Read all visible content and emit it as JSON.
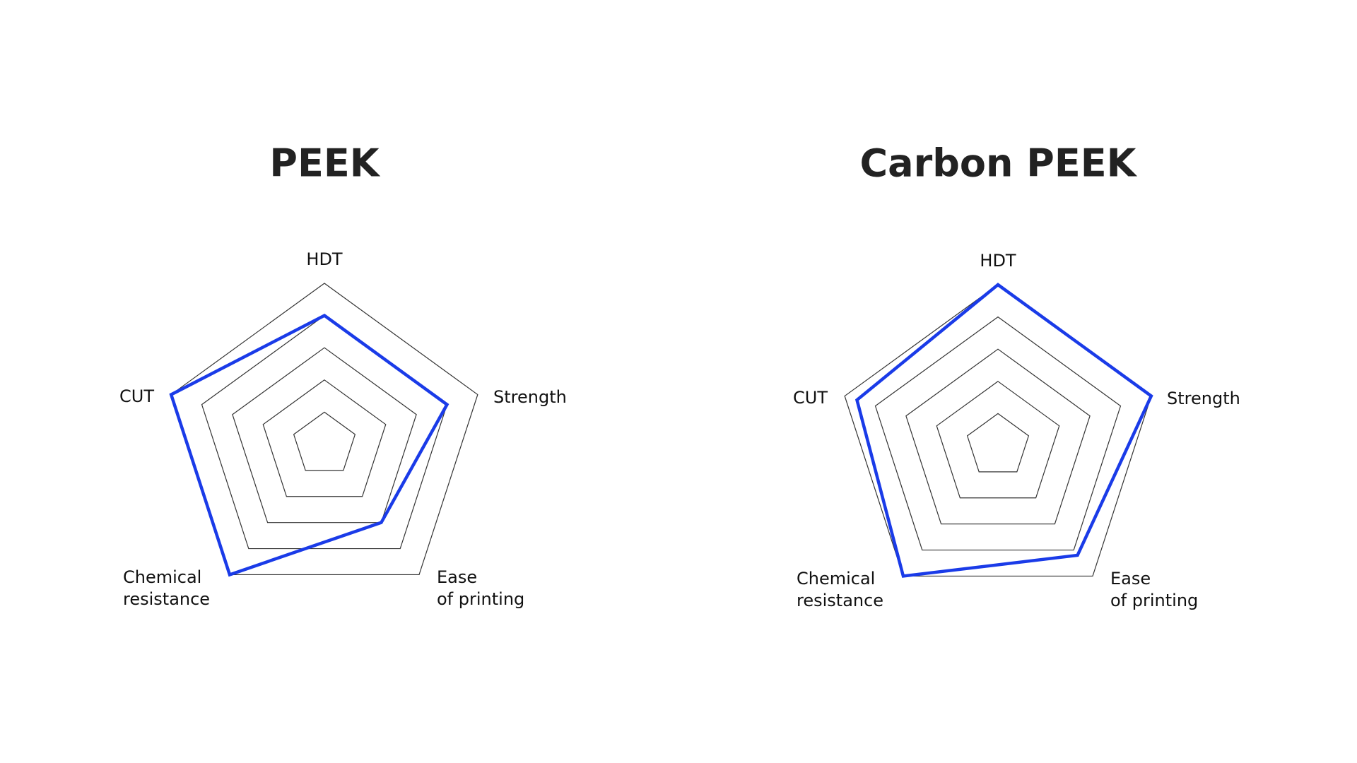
{
  "chart_data": [
    {
      "type": "radar",
      "title": "PEEK",
      "categories": [
        [
          "HDT"
        ],
        [
          "Strength"
        ],
        [
          "Ease",
          "of printing"
        ],
        [
          "Chemical",
          "resistance"
        ],
        [
          "CUT"
        ]
      ],
      "values": [
        4,
        4,
        3,
        5,
        5
      ],
      "color": "#1a3be8",
      "rlim": [
        0,
        5
      ],
      "rticks": [
        1,
        2,
        3,
        4,
        5
      ]
    },
    {
      "type": "radar",
      "title": "Carbon PEEK",
      "categories": [
        [
          "HDT"
        ],
        [
          "Strength"
        ],
        [
          "Ease",
          "of printing"
        ],
        [
          "Chemical",
          "resistance"
        ],
        [
          "CUT"
        ]
      ],
      "values": [
        5,
        5,
        4.2,
        5,
        4.6
      ],
      "color": "#1a3be8",
      "rlim": [
        0,
        5
      ],
      "rticks": [
        1,
        2,
        3,
        4,
        5
      ]
    }
  ]
}
